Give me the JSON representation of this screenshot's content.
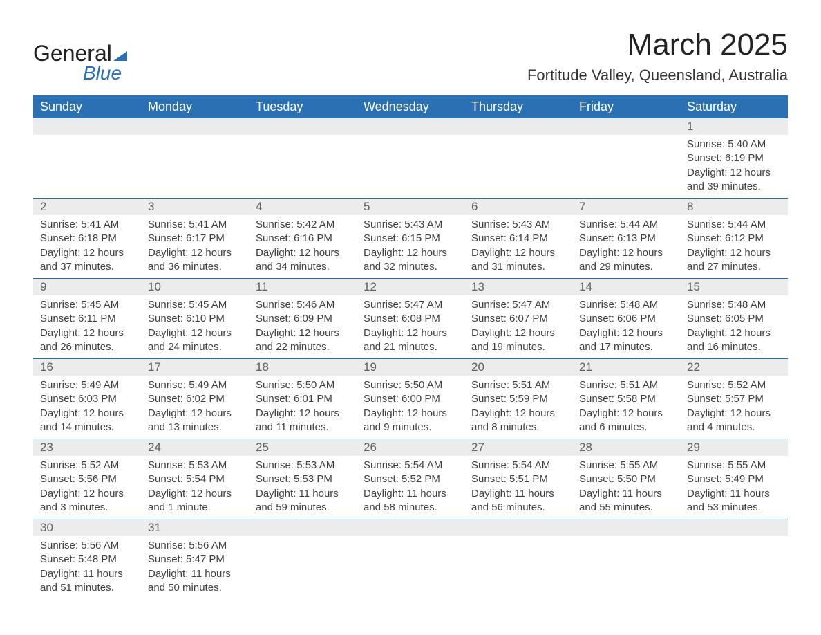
{
  "logo": {
    "text_main": "General",
    "text_sub": "Blue"
  },
  "header": {
    "title": "March 2025",
    "location": "Fortitude Valley, Queensland, Australia"
  },
  "colors": {
    "header_bg": "#2a71b3",
    "header_text": "#ffffff",
    "daynum_bg": "#ececec",
    "daynum_text": "#606060",
    "body_text": "#404040"
  },
  "weekdays": [
    "Sunday",
    "Monday",
    "Tuesday",
    "Wednesday",
    "Thursday",
    "Friday",
    "Saturday"
  ],
  "weeks": [
    [
      null,
      null,
      null,
      null,
      null,
      null,
      {
        "day": "1",
        "sunrise": "Sunrise: 5:40 AM",
        "sunset": "Sunset: 6:19 PM",
        "daylight": "Daylight: 12 hours and 39 minutes."
      }
    ],
    [
      {
        "day": "2",
        "sunrise": "Sunrise: 5:41 AM",
        "sunset": "Sunset: 6:18 PM",
        "daylight": "Daylight: 12 hours and 37 minutes."
      },
      {
        "day": "3",
        "sunrise": "Sunrise: 5:41 AM",
        "sunset": "Sunset: 6:17 PM",
        "daylight": "Daylight: 12 hours and 36 minutes."
      },
      {
        "day": "4",
        "sunrise": "Sunrise: 5:42 AM",
        "sunset": "Sunset: 6:16 PM",
        "daylight": "Daylight: 12 hours and 34 minutes."
      },
      {
        "day": "5",
        "sunrise": "Sunrise: 5:43 AM",
        "sunset": "Sunset: 6:15 PM",
        "daylight": "Daylight: 12 hours and 32 minutes."
      },
      {
        "day": "6",
        "sunrise": "Sunrise: 5:43 AM",
        "sunset": "Sunset: 6:14 PM",
        "daylight": "Daylight: 12 hours and 31 minutes."
      },
      {
        "day": "7",
        "sunrise": "Sunrise: 5:44 AM",
        "sunset": "Sunset: 6:13 PM",
        "daylight": "Daylight: 12 hours and 29 minutes."
      },
      {
        "day": "8",
        "sunrise": "Sunrise: 5:44 AM",
        "sunset": "Sunset: 6:12 PM",
        "daylight": "Daylight: 12 hours and 27 minutes."
      }
    ],
    [
      {
        "day": "9",
        "sunrise": "Sunrise: 5:45 AM",
        "sunset": "Sunset: 6:11 PM",
        "daylight": "Daylight: 12 hours and 26 minutes."
      },
      {
        "day": "10",
        "sunrise": "Sunrise: 5:45 AM",
        "sunset": "Sunset: 6:10 PM",
        "daylight": "Daylight: 12 hours and 24 minutes."
      },
      {
        "day": "11",
        "sunrise": "Sunrise: 5:46 AM",
        "sunset": "Sunset: 6:09 PM",
        "daylight": "Daylight: 12 hours and 22 minutes."
      },
      {
        "day": "12",
        "sunrise": "Sunrise: 5:47 AM",
        "sunset": "Sunset: 6:08 PM",
        "daylight": "Daylight: 12 hours and 21 minutes."
      },
      {
        "day": "13",
        "sunrise": "Sunrise: 5:47 AM",
        "sunset": "Sunset: 6:07 PM",
        "daylight": "Daylight: 12 hours and 19 minutes."
      },
      {
        "day": "14",
        "sunrise": "Sunrise: 5:48 AM",
        "sunset": "Sunset: 6:06 PM",
        "daylight": "Daylight: 12 hours and 17 minutes."
      },
      {
        "day": "15",
        "sunrise": "Sunrise: 5:48 AM",
        "sunset": "Sunset: 6:05 PM",
        "daylight": "Daylight: 12 hours and 16 minutes."
      }
    ],
    [
      {
        "day": "16",
        "sunrise": "Sunrise: 5:49 AM",
        "sunset": "Sunset: 6:03 PM",
        "daylight": "Daylight: 12 hours and 14 minutes."
      },
      {
        "day": "17",
        "sunrise": "Sunrise: 5:49 AM",
        "sunset": "Sunset: 6:02 PM",
        "daylight": "Daylight: 12 hours and 13 minutes."
      },
      {
        "day": "18",
        "sunrise": "Sunrise: 5:50 AM",
        "sunset": "Sunset: 6:01 PM",
        "daylight": "Daylight: 12 hours and 11 minutes."
      },
      {
        "day": "19",
        "sunrise": "Sunrise: 5:50 AM",
        "sunset": "Sunset: 6:00 PM",
        "daylight": "Daylight: 12 hours and 9 minutes."
      },
      {
        "day": "20",
        "sunrise": "Sunrise: 5:51 AM",
        "sunset": "Sunset: 5:59 PM",
        "daylight": "Daylight: 12 hours and 8 minutes."
      },
      {
        "day": "21",
        "sunrise": "Sunrise: 5:51 AM",
        "sunset": "Sunset: 5:58 PM",
        "daylight": "Daylight: 12 hours and 6 minutes."
      },
      {
        "day": "22",
        "sunrise": "Sunrise: 5:52 AM",
        "sunset": "Sunset: 5:57 PM",
        "daylight": "Daylight: 12 hours and 4 minutes."
      }
    ],
    [
      {
        "day": "23",
        "sunrise": "Sunrise: 5:52 AM",
        "sunset": "Sunset: 5:56 PM",
        "daylight": "Daylight: 12 hours and 3 minutes."
      },
      {
        "day": "24",
        "sunrise": "Sunrise: 5:53 AM",
        "sunset": "Sunset: 5:54 PM",
        "daylight": "Daylight: 12 hours and 1 minute."
      },
      {
        "day": "25",
        "sunrise": "Sunrise: 5:53 AM",
        "sunset": "Sunset: 5:53 PM",
        "daylight": "Daylight: 11 hours and 59 minutes."
      },
      {
        "day": "26",
        "sunrise": "Sunrise: 5:54 AM",
        "sunset": "Sunset: 5:52 PM",
        "daylight": "Daylight: 11 hours and 58 minutes."
      },
      {
        "day": "27",
        "sunrise": "Sunrise: 5:54 AM",
        "sunset": "Sunset: 5:51 PM",
        "daylight": "Daylight: 11 hours and 56 minutes."
      },
      {
        "day": "28",
        "sunrise": "Sunrise: 5:55 AM",
        "sunset": "Sunset: 5:50 PM",
        "daylight": "Daylight: 11 hours and 55 minutes."
      },
      {
        "day": "29",
        "sunrise": "Sunrise: 5:55 AM",
        "sunset": "Sunset: 5:49 PM",
        "daylight": "Daylight: 11 hours and 53 minutes."
      }
    ],
    [
      {
        "day": "30",
        "sunrise": "Sunrise: 5:56 AM",
        "sunset": "Sunset: 5:48 PM",
        "daylight": "Daylight: 11 hours and 51 minutes."
      },
      {
        "day": "31",
        "sunrise": "Sunrise: 5:56 AM",
        "sunset": "Sunset: 5:47 PM",
        "daylight": "Daylight: 11 hours and 50 minutes."
      },
      null,
      null,
      null,
      null,
      null
    ]
  ]
}
